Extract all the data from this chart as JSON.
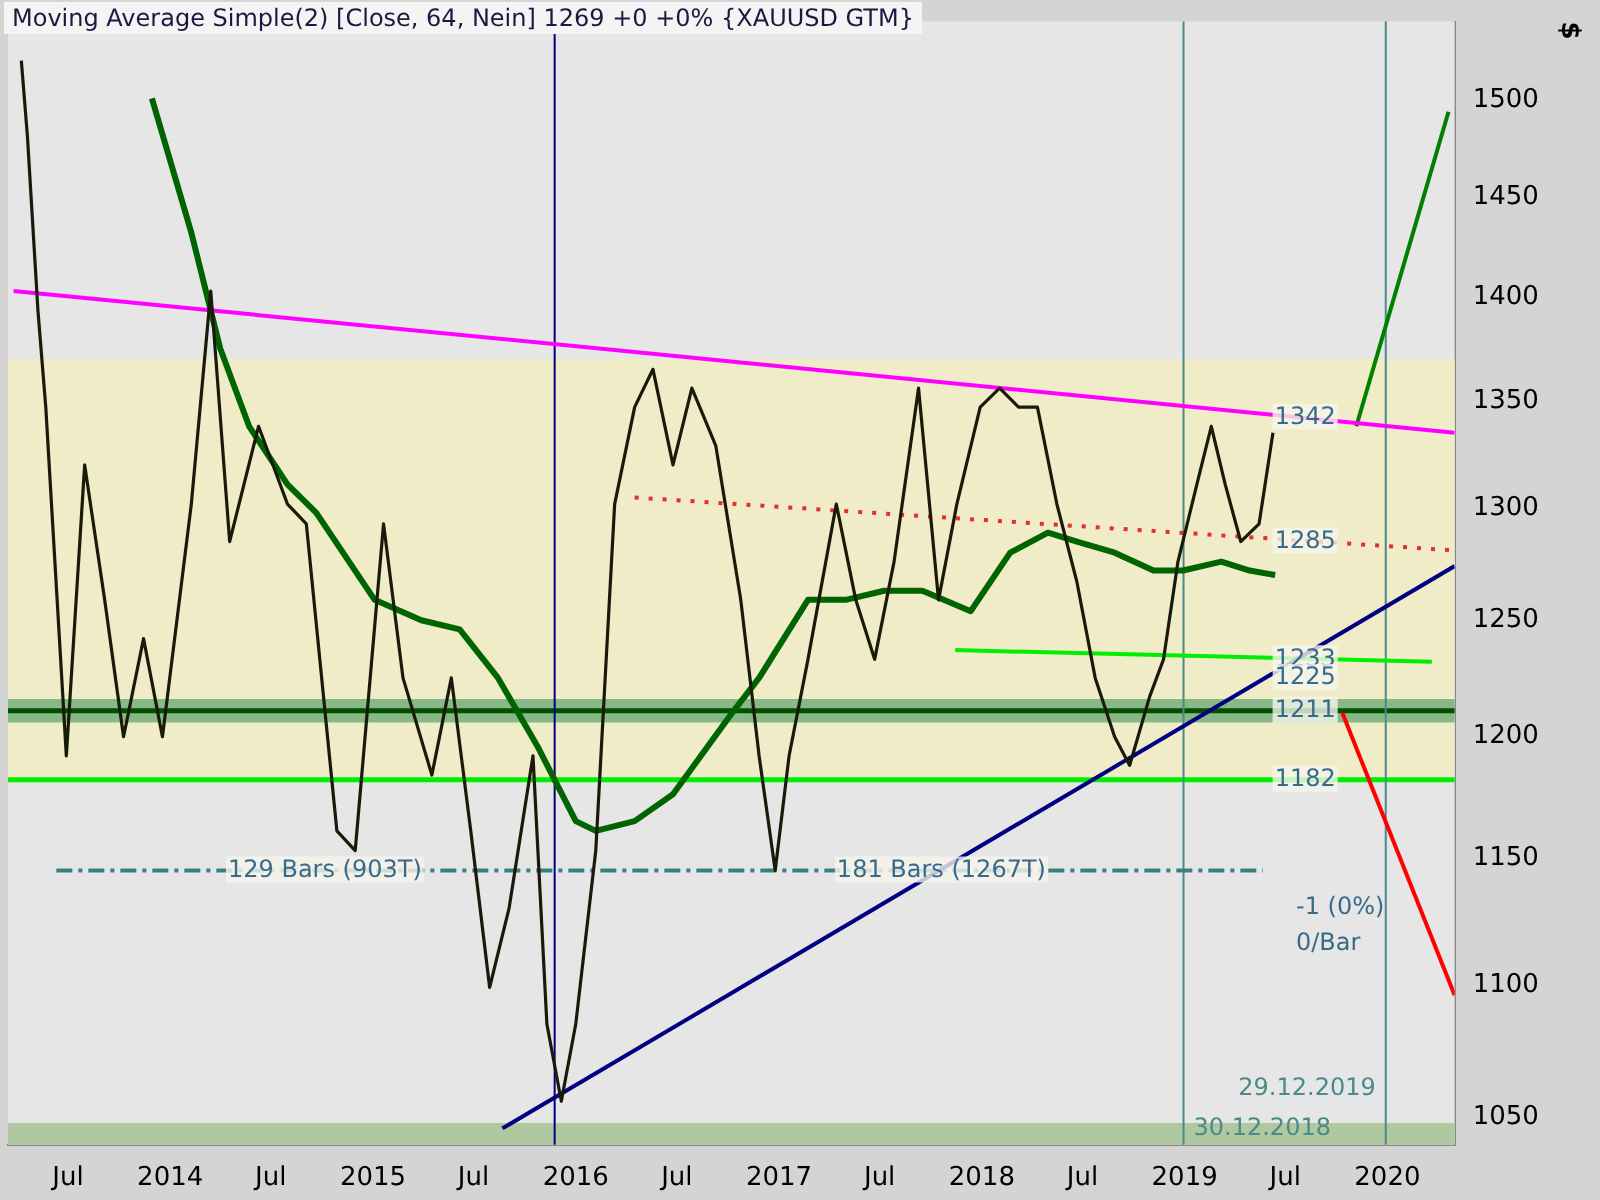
{
  "chart_data": {
    "type": "line",
    "title": "Moving Average Simple(2) [Close, 64, Nein] 1269 +0 +0% {XAUUSD GTM}",
    "ylabel": "$",
    "log": true,
    "grid": false,
    "legend": false,
    "marker": "none",
    "xlim": [
      "2013-03-15",
      "2020-05-01"
    ],
    "xticks": [
      {
        "value": "2013-07-01",
        "label": "Jul"
      },
      {
        "value": "2014-01-01",
        "label": "2014"
      },
      {
        "value": "2014-07-01",
        "label": "Jul"
      },
      {
        "value": "2015-01-01",
        "label": "2015"
      },
      {
        "value": "2015-07-01",
        "label": "Jul"
      },
      {
        "value": "2016-01-01",
        "label": "2016"
      },
      {
        "value": "2016-07-01",
        "label": "Jul"
      },
      {
        "value": "2017-01-01",
        "label": "2017"
      },
      {
        "value": "2017-07-01",
        "label": "Jul"
      },
      {
        "value": "2018-01-01",
        "label": "2018"
      },
      {
        "value": "2018-07-01",
        "label": "Jul"
      },
      {
        "value": "2019-01-01",
        "label": "2019"
      },
      {
        "value": "2019-07-01",
        "label": "Jul"
      },
      {
        "value": "2020-01-01",
        "label": "2020"
      }
    ],
    "ylim": [
      1040,
      1542
    ],
    "yticks": [
      1050,
      1100,
      1150,
      1200,
      1250,
      1300,
      1350,
      1400,
      1450,
      1500
    ],
    "series": [
      {
        "type": "line",
        "color": "#1a1a0a",
        "x": [
          "2013-04-08",
          "2013-04-19",
          "2013-05-08",
          "2013-05-22",
          "2013-06-28",
          "2013-07-31",
          "2013-09-05",
          "2013-10-09",
          "2013-11-14",
          "2013-12-18",
          "2014-02-08",
          "2014-03-15",
          "2014-04-18",
          "2014-06-09",
          "2014-07-31",
          "2014-09-03",
          "2014-10-28",
          "2014-11-30",
          "2015-01-20",
          "2015-02-24",
          "2015-04-17",
          "2015-05-22",
          "2015-06-26",
          "2015-07-30",
          "2015-09-03",
          "2015-10-16",
          "2015-11-10",
          "2015-12-06",
          "2016-01-01",
          "2016-02-06",
          "2016-03-11",
          "2016-04-16",
          "2016-05-19",
          "2016-06-24",
          "2016-07-28",
          "2016-09-09",
          "2016-10-24",
          "2016-11-26",
          "2016-12-25",
          "2017-01-19",
          "2017-02-22",
          "2017-04-14",
          "2017-05-19",
          "2017-06-22",
          "2017-07-27",
          "2017-09-09",
          "2017-10-15",
          "2017-11-17",
          "2017-12-29",
          "2018-02-02",
          "2018-03-08",
          "2018-04-11",
          "2018-05-16",
          "2018-06-21",
          "2018-07-24",
          "2018-08-28",
          "2018-09-24",
          "2018-10-30",
          "2018-11-24",
          "2018-12-20",
          "2019-01-23",
          "2019-02-18",
          "2019-03-15",
          "2019-04-12",
          "2019-05-15",
          "2019-06-09"
        ],
        "values": [
          1521,
          1481,
          1393,
          1347,
          1192,
          1320,
          1259,
          1200,
          1242,
          1200,
          1302,
          1403,
          1285,
          1338,
          1302,
          1293,
          1161,
          1153,
          1293,
          1225,
          1184,
          1225,
          1161,
          1099,
          1130,
          1192,
          1085,
          1056,
          1085,
          1153,
          1302,
          1347,
          1365,
          1320,
          1356,
          1329,
          1259,
          1192,
          1145,
          1192,
          1233,
          1302,
          1259,
          1233,
          1276,
          1356,
          1259,
          1302,
          1347,
          1356,
          1347,
          1347,
          1302,
          1267,
          1225,
          1200,
          1188,
          1217,
          1233,
          1276,
          1311,
          1338,
          1311,
          1285,
          1293,
          1335
        ]
      },
      {
        "type": "line",
        "color": "#006400",
        "x": [
          "2013-11-29",
          "2014-02-08",
          "2014-04-01",
          "2014-05-23",
          "2014-07-31",
          "2014-09-21",
          "2015-01-04",
          "2015-03-29",
          "2015-06-06",
          "2015-08-14",
          "2015-10-24",
          "2016-01-01",
          "2016-02-06",
          "2016-04-16",
          "2016-06-24",
          "2016-10-05",
          "2016-11-26",
          "2017-02-22",
          "2017-05-01",
          "2017-07-09",
          "2017-09-16",
          "2017-12-12",
          "2018-02-21",
          "2018-04-30",
          "2018-06-21",
          "2018-08-28",
          "2018-11-06",
          "2018-12-29",
          "2019-03-08",
          "2019-04-28",
          "2019-06-13"
        ],
        "values": [
          1501,
          1432,
          1375,
          1338,
          1311,
          1298,
          1259,
          1250,
          1246,
          1225,
          1196,
          1165,
          1161,
          1165,
          1176,
          1209,
          1225,
          1259,
          1259,
          1263,
          1263,
          1254,
          1280,
          1289,
          1285,
          1280,
          1272,
          1272,
          1276,
          1272,
          1270
        ]
      },
      {
        "type": "line",
        "color": "#ff00ff",
        "x": [
          "2013-03-25",
          "2020-05-01"
        ],
        "values": [
          1403,
          1335
        ]
      },
      {
        "type": "line",
        "color": "#e03030",
        "line_style": "dotted",
        "x": [
          "2016-04-16",
          "2020-05-01"
        ],
        "values": [
          1305,
          1281
        ]
      },
      {
        "type": "line",
        "color": "#000080",
        "x": [
          "2015-08-22",
          "2020-05-01"
        ],
        "values": [
          1046,
          1274
        ]
      },
      {
        "type": "line",
        "color": "#00ee00",
        "x": [
          "2017-11-14",
          "2020-03-21"
        ],
        "values": [
          1237,
          1232
        ]
      },
      {
        "type": "line",
        "color": "#008000",
        "x": [
          "2019-11-06",
          "2020-04-20"
        ],
        "values": [
          1338,
          1494
        ]
      },
      {
        "type": "line",
        "color": "#ff0000",
        "x": [
          "2019-10-12",
          "2020-05-01"
        ],
        "values": [
          1210,
          1096
        ]
      },
      {
        "type": "line",
        "color": "#3a8080",
        "line_style": "dashed",
        "x": [
          "2013-06-10",
          "2019-05-22"
        ],
        "values": [
          1145,
          1145
        ]
      }
    ],
    "bands": [
      {
        "axis": "y",
        "from": 1182,
        "to": 1370,
        "color": "#f0ecc8"
      },
      {
        "axis": "y",
        "from": 1040,
        "to": 1048,
        "color": "#b0c8a0"
      },
      {
        "axis": "y",
        "from": 1206,
        "to": 1216,
        "color": "#88b888"
      }
    ],
    "ref_lines": [
      {
        "axis": "y",
        "value": 1182,
        "color": "#00ee00"
      },
      {
        "axis": "y",
        "value": 1211,
        "color": "#005000"
      },
      {
        "axis": "x",
        "value": "2015-11-24",
        "color": "#000080"
      },
      {
        "axis": "x",
        "value": "2018-12-30",
        "label": "30.12.2018",
        "color": "#4a8a8a"
      },
      {
        "axis": "x",
        "value": "2019-12-29",
        "label": "29.12.2019",
        "color": "#4a8a8a"
      }
    ],
    "annotations": [
      {
        "text": "1342",
        "x": "2019-06-12",
        "y": 1342
      },
      {
        "text": "1285",
        "x": "2019-06-12",
        "y": 1285
      },
      {
        "text": "1233",
        "x": "2019-06-12",
        "y": 1233
      },
      {
        "text": "1225",
        "x": "2019-06-12",
        "y": 1225
      },
      {
        "text": "1211",
        "x": "2019-06-12",
        "y": 1211
      },
      {
        "text": "1182",
        "x": "2019-06-12",
        "y": 1182
      },
      {
        "text": "129 Bars (903T)",
        "x": "2014-04-15",
        "y": 1145
      },
      {
        "text": "181 Bars (1267T)",
        "x": "2017-04-15",
        "y": 1145
      },
      "-1 (0%)",
      "0/Bar"
    ]
  }
}
